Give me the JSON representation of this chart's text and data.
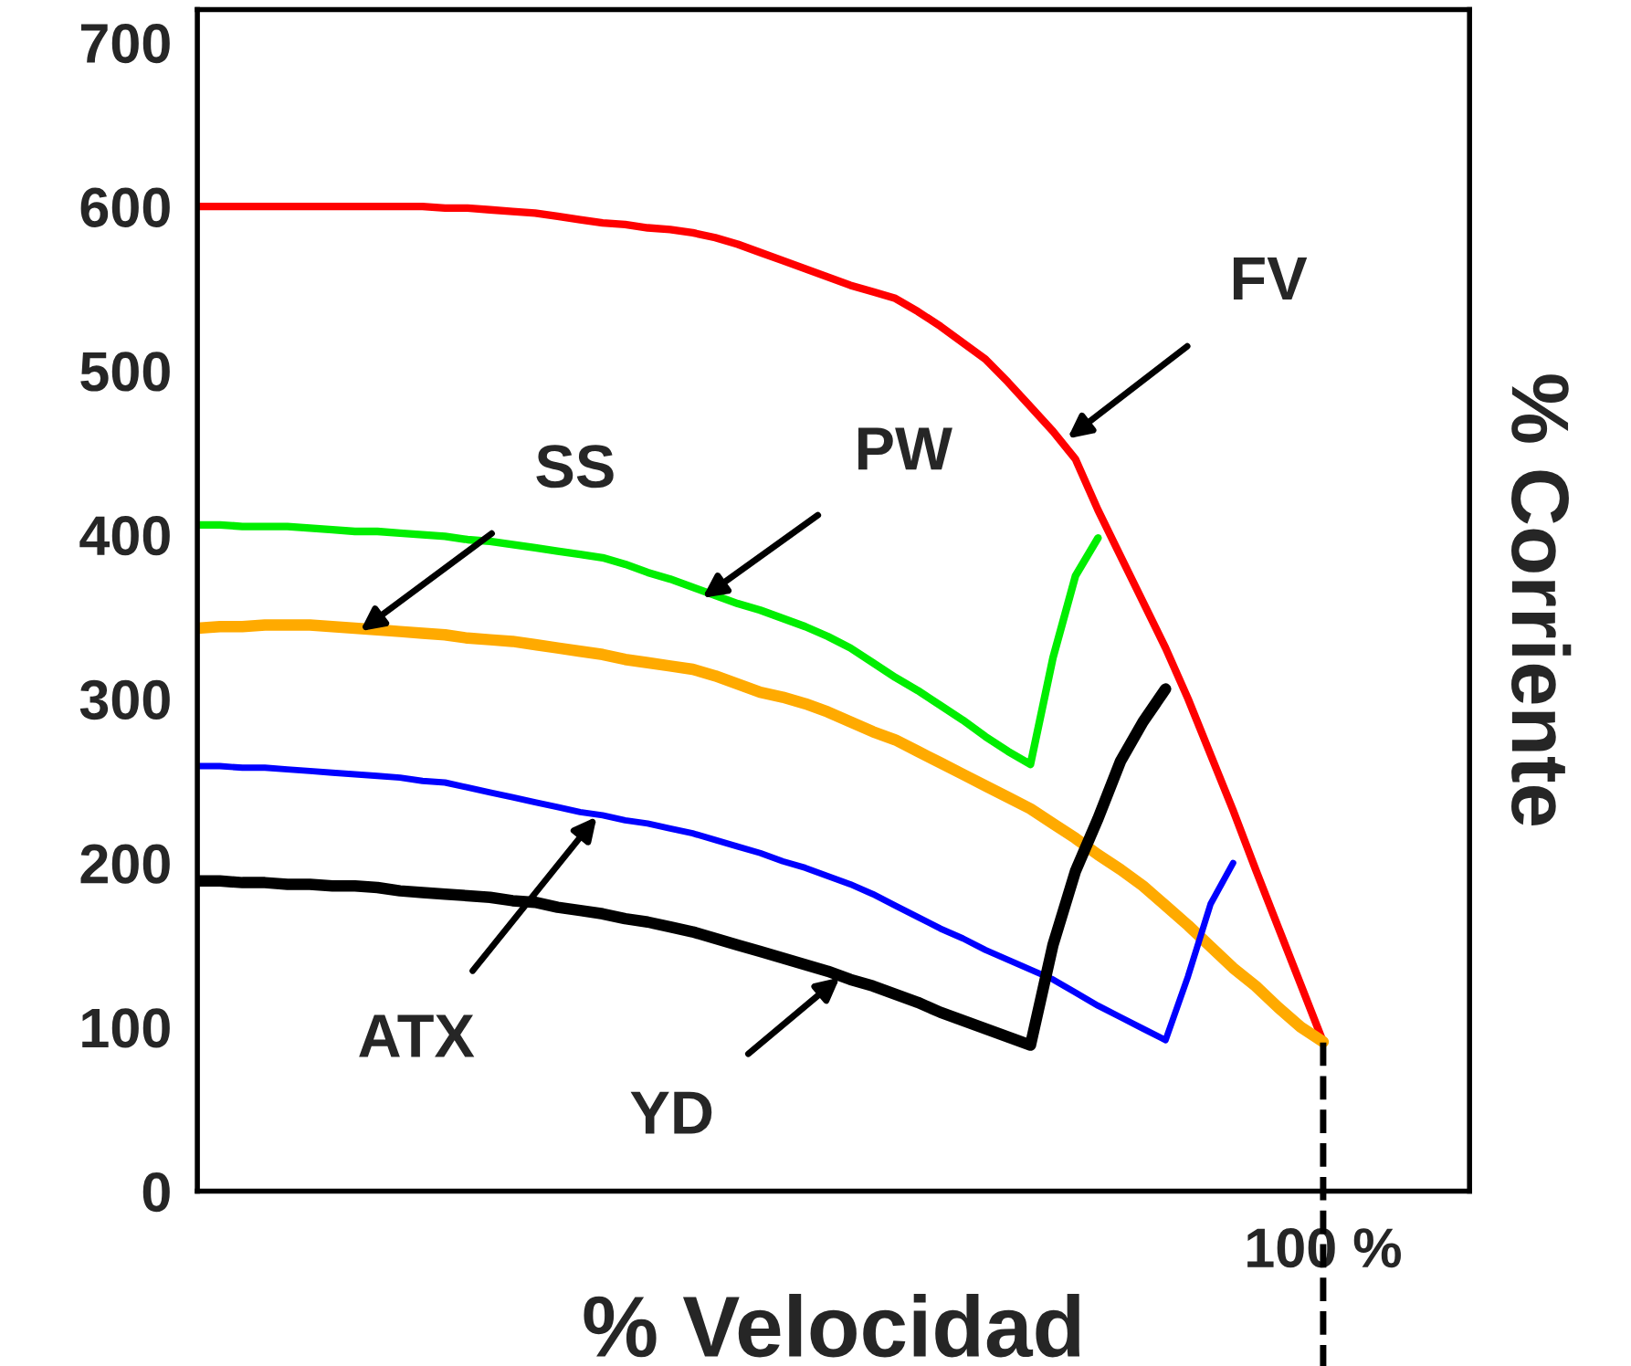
{
  "chart_data": {
    "type": "line",
    "xlabel": "% Velocidad",
    "ylabel": "% Corriente",
    "categories": [
      null,
      null,
      null,
      null,
      null,
      null,
      null,
      null,
      null,
      null,
      null,
      null,
      null,
      null,
      null,
      null,
      null,
      null,
      null,
      null,
      null,
      null,
      null,
      null,
      null,
      null,
      null,
      null,
      null,
      null,
      null,
      null,
      null,
      null,
      null,
      null,
      null,
      null,
      null,
      null,
      null,
      null,
      null,
      null,
      null,
      null,
      null,
      null,
      null,
      null,
      "100 %",
      null,
      null,
      null,
      null,
      null,
      null
    ],
    "ylim": [
      0,
      720
    ],
    "yticks": [
      0,
      100,
      200,
      300,
      400,
      500,
      600,
      700
    ],
    "grid": false,
    "legend": false,
    "marker": "none",
    "line_style": "solid",
    "series": [
      {
        "color": "#ff0000",
        "values": [
          600,
          600,
          600,
          600,
          600,
          600,
          600,
          600,
          600,
          600,
          600,
          599,
          599,
          598,
          597,
          596,
          594,
          592,
          590,
          589,
          587,
          586,
          584,
          581,
          577,
          572,
          567,
          562,
          557,
          552,
          548,
          544,
          536,
          527,
          517,
          507,
          493,
          478,
          463,
          446,
          415,
          387,
          359,
          331,
          300,
          266,
          232,
          196,
          161,
          126,
          91,
          null,
          null,
          null,
          null,
          null,
          null
        ]
      },
      {
        "color": "#00ee00",
        "values": [
          406,
          406,
          405,
          405,
          405,
          404,
          403,
          402,
          402,
          401,
          400,
          399,
          397,
          396,
          394,
          392,
          390,
          388,
          386,
          382,
          377,
          373,
          368,
          363,
          358,
          354,
          349,
          344,
          338,
          331,
          322,
          313,
          305,
          296,
          287,
          277,
          268,
          260,
          325,
          375,
          398,
          null,
          null,
          null,
          null,
          null,
          null,
          null,
          null,
          null,
          null,
          null,
          null,
          null,
          null,
          null,
          null
        ]
      },
      {
        "color": "#ffaa00",
        "values": [
          343,
          344,
          344,
          345,
          345,
          345,
          344,
          343,
          342,
          341,
          340,
          339,
          337,
          336,
          335,
          333,
          331,
          329,
          327,
          324,
          322,
          320,
          318,
          314,
          309,
          304,
          301,
          297,
          292,
          286,
          280,
          275,
          268,
          261,
          254,
          247,
          240,
          233,
          224,
          215,
          205,
          196,
          186,
          174,
          162,
          149,
          136,
          125,
          112,
          100,
          91,
          null,
          null,
          null,
          null,
          null,
          null
        ]
      },
      {
        "color": "#0000ff",
        "values": [
          259,
          259,
          258,
          258,
          257,
          256,
          255,
          254,
          253,
          252,
          250,
          249,
          246,
          243,
          240,
          237,
          234,
          231,
          229,
          226,
          224,
          221,
          218,
          214,
          210,
          206,
          201,
          197,
          192,
          187,
          181,
          174,
          167,
          160,
          154,
          147,
          141,
          135,
          129,
          121,
          113,
          106,
          99,
          92,
          131,
          175,
          200,
          null,
          null,
          null,
          null,
          null,
          null,
          null,
          null,
          null,
          null
        ]
      },
      {
        "color": "#000000",
        "values": [
          189,
          189,
          188,
          188,
          187,
          187,
          186,
          186,
          185,
          183,
          182,
          181,
          180,
          179,
          177,
          176,
          173,
          171,
          169,
          166,
          164,
          161,
          158,
          154,
          150,
          146,
          142,
          138,
          134,
          129,
          125,
          120,
          115,
          109,
          104,
          99,
          94,
          89,
          150,
          195,
          227,
          262,
          286,
          306,
          null,
          null,
          null,
          null,
          null,
          null,
          null,
          null,
          null,
          null,
          null,
          null,
          null
        ]
      }
    ],
    "annotations": [
      "FV",
      "PW",
      "SS",
      "ATX",
      "YD"
    ],
    "ref_lines": [
      {
        "axis": "x",
        "value": "100 %",
        "color": "#000000",
        "line_style": "dashed"
      }
    ]
  }
}
